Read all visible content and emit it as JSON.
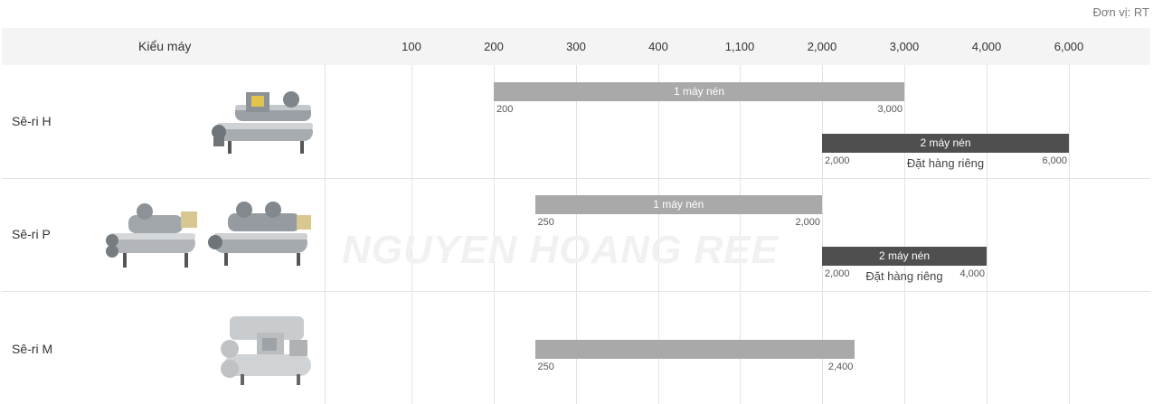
{
  "unit_label": "Đơn vị: RT",
  "model_column_title": "Kiểu máy",
  "watermark": "NGUYEN HOANG REE",
  "chart_data": {
    "type": "range-bar",
    "unit": "RT",
    "ticks": [
      "100",
      "200",
      "300",
      "400",
      "1,100",
      "2,000",
      "3,000",
      "4,000",
      "6,000"
    ],
    "rows": [
      {
        "name": "Sê-ri H",
        "bars": [
          {
            "label": "1 máy nén",
            "start": 200,
            "end": 3000,
            "start_label": "200",
            "end_label": "3,000",
            "kind": "single",
            "note": ""
          },
          {
            "label": "2 máy nén",
            "start": 2000,
            "end": 6000,
            "start_label": "2,000",
            "end_label": "6,000",
            "kind": "dual",
            "note": "Đặt hàng riêng"
          }
        ]
      },
      {
        "name": "Sê-ri P",
        "bars": [
          {
            "label": "1 máy nén",
            "start": 250,
            "end": 2000,
            "start_label": "250",
            "end_label": "2,000",
            "kind": "single",
            "note": ""
          },
          {
            "label": "2 máy nén",
            "start": 2000,
            "end": 4000,
            "start_label": "2,000",
            "end_label": "4,000",
            "kind": "dual",
            "note": "Đặt hàng riêng"
          }
        ]
      },
      {
        "name": "Sê-ri M",
        "bars": [
          {
            "label": "",
            "start": 250,
            "end": 2400,
            "start_label": "250",
            "end_label": "2,400",
            "kind": "single",
            "note": ""
          }
        ]
      }
    ]
  }
}
